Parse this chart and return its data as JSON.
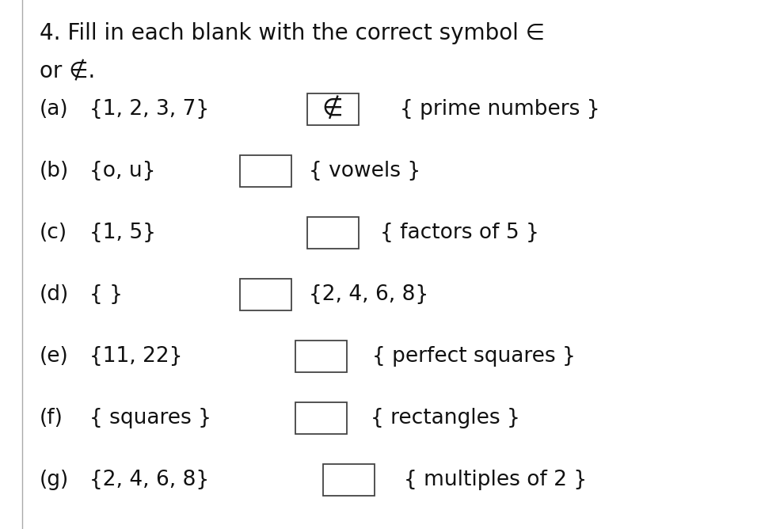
{
  "title_line1": "4. Fill in each blank with the correct symbol ∈",
  "title_line2": "or ∉.",
  "background_color": "#ffffff",
  "text_color": "#111111",
  "lines": [
    {
      "label": "(a)",
      "left": "{1, 2, 3, 7}",
      "symbol": "∉",
      "right": "{ prime numbers }",
      "box_symbol": true
    },
    {
      "label": "(b)",
      "left": "{o, u}",
      "symbol": "",
      "right": "{ vowels }",
      "box_symbol": false
    },
    {
      "label": "(c)",
      "left": "{1, 5}",
      "symbol": "",
      "right": "{ factors of 5 }",
      "box_symbol": false
    },
    {
      "label": "(d)",
      "left": "{ }",
      "symbol": "",
      "right": "{2, 4, 6, 8}",
      "box_symbol": false
    },
    {
      "label": "(e)",
      "left": "{11, 22}",
      "symbol": "",
      "right": "{ perfect squares }",
      "box_symbol": false
    },
    {
      "label": "(f)",
      "left": "{ squares }",
      "symbol": "",
      "right": "{ rectangles }",
      "box_symbol": false
    },
    {
      "label": "(g)",
      "left": "{2, 4, 6, 8}",
      "symbol": "",
      "right": "{ multiples of 2 }",
      "box_symbol": false
    }
  ],
  "figsize": [
    9.85,
    6.68
  ],
  "dpi": 100,
  "font_size": 19
}
